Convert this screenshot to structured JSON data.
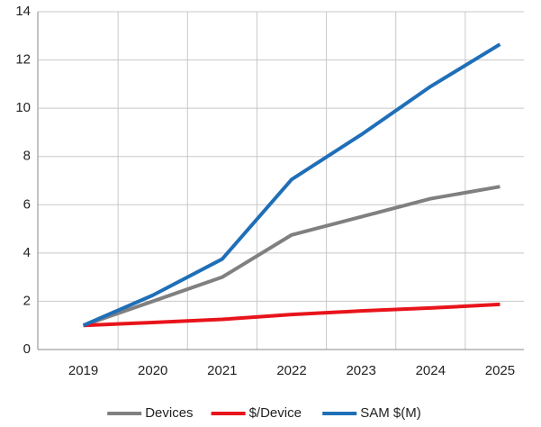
{
  "chart_data": {
    "type": "line",
    "categories": [
      "2019",
      "2020",
      "2021",
      "2022",
      "2023",
      "2024",
      "2025"
    ],
    "series": [
      {
        "name": "Devices",
        "color": "#808080",
        "values": [
          1,
          2.0,
          3.0,
          4.75,
          5.5,
          6.25,
          6.75
        ]
      },
      {
        "name": "$/Device",
        "color": "#e8141b",
        "values": [
          1,
          1.12,
          1.25,
          1.45,
          1.6,
          1.72,
          1.87
        ]
      },
      {
        "name": "SAM $(M)",
        "color": "#1f6fb8",
        "values": [
          1,
          2.25,
          3.75,
          7.05,
          8.9,
          10.9,
          12.65
        ]
      }
    ],
    "ylim": [
      0,
      14
    ],
    "yticks": [
      0,
      2,
      4,
      6,
      8,
      10,
      12,
      14
    ],
    "grid": true,
    "legend": "bottom"
  }
}
